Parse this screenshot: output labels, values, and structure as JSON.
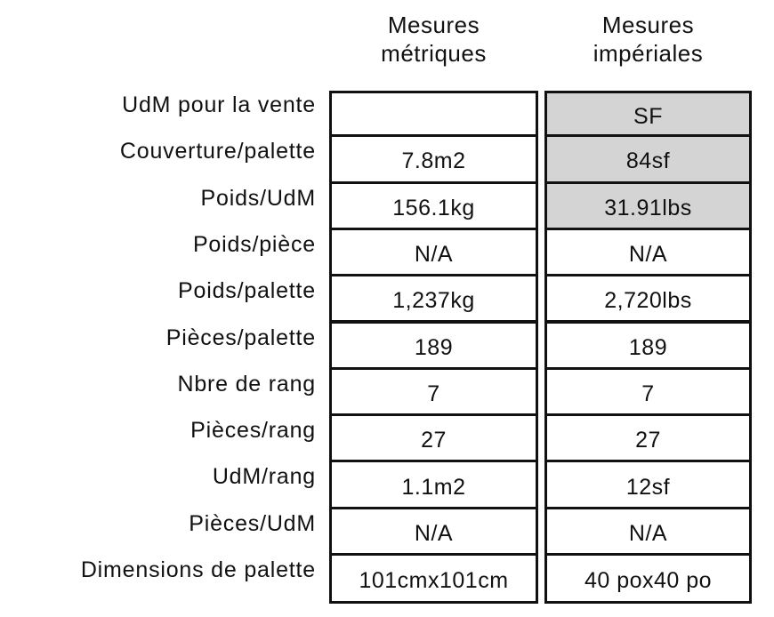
{
  "table": {
    "headers": [
      [
        "Mesures",
        "métriques"
      ],
      [
        "Mesures",
        "impériales"
      ]
    ],
    "rows": [
      [
        "UdM pour la vente",
        null,
        "SF"
      ],
      [
        "Couverture/palette",
        "7.8m2",
        "84sf"
      ],
      [
        "Poids/UdM",
        "156.1kg",
        "31.91lbs"
      ],
      [
        "Poids/pièce",
        "N/A",
        "N/A"
      ],
      [
        "Poids/palette",
        "1,237kg",
        "2,720lbs"
      ],
      [
        "Pièces/palette",
        "189",
        "189"
      ],
      [
        "Nbre de rang",
        "7",
        "7"
      ],
      [
        "Pièces/rang",
        "27",
        "27"
      ],
      [
        "UdM/rang",
        "1.1m2",
        "12sf"
      ],
      [
        "Pièces/UdM",
        "N/A",
        "N/A"
      ],
      [
        "Dimensions de palette",
        "101cmx101cm",
        "40 pox40 po"
      ]
    ]
  }
}
